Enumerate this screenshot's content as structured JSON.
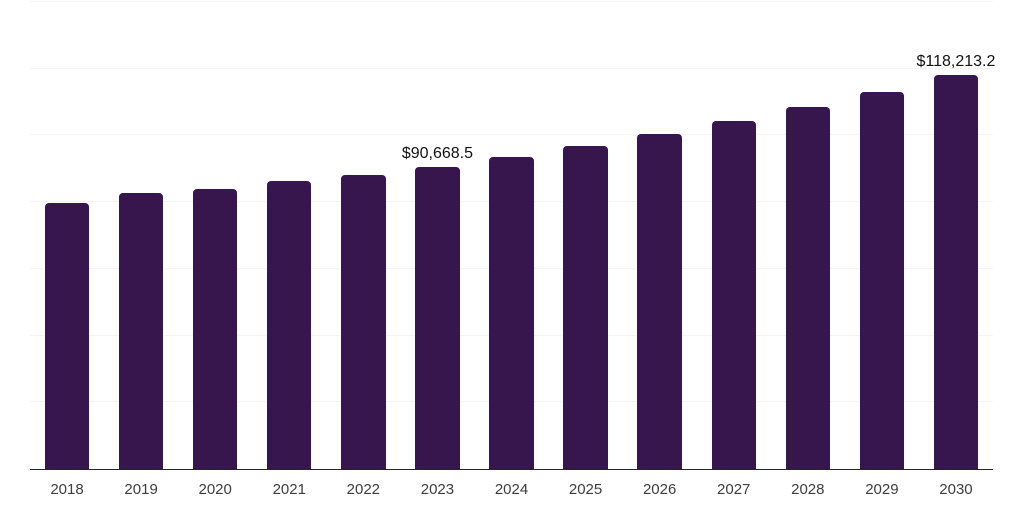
{
  "page": {
    "background_color": "#ffffff"
  },
  "chart_data": {
    "type": "bar",
    "title": "",
    "xlabel": "",
    "ylabel": "",
    "categories": [
      "2018",
      "2019",
      "2020",
      "2021",
      "2022",
      "2023",
      "2024",
      "2025",
      "2026",
      "2027",
      "2028",
      "2029",
      "2030"
    ],
    "values": [
      79700,
      82800,
      84000,
      86200,
      88000,
      90668.5,
      93500,
      96800,
      100300,
      104200,
      108400,
      113100,
      118213.2
    ],
    "data_labels": {
      "2023": "$90,668.5",
      "2030": "$118,213.2"
    },
    "ylim": [
      0,
      140000
    ],
    "grid_step": 20000,
    "grid": true,
    "y_axis_labels_visible": false,
    "legend": "none",
    "bar_color": "#37154d",
    "grid_color": "#f4f3f5",
    "axis_line_color": "#262626",
    "tick_label_color": "#3d3d3d",
    "data_label_color": "#111111"
  }
}
